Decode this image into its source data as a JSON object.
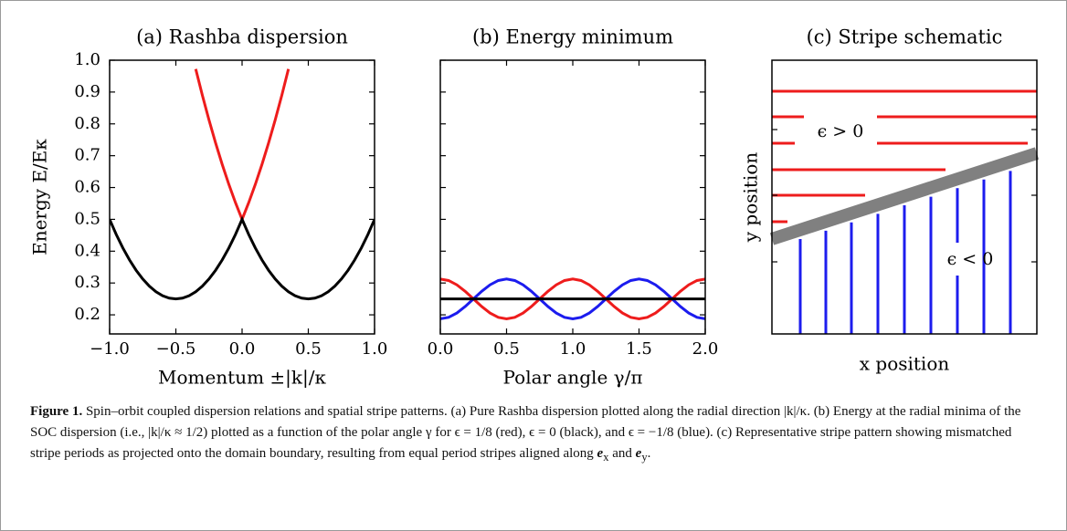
{
  "chart_data": [
    {
      "type": "line",
      "title": "(a) Rashba dispersion",
      "xlabel": "Momentum ±|k|/κ",
      "ylabel": "Energy E/Eκ",
      "x": [
        -1,
        -0.95,
        -0.9,
        -0.85,
        -0.8,
        -0.75,
        -0.7,
        -0.65,
        -0.6,
        -0.55,
        -0.5,
        -0.45,
        -0.4,
        -0.35,
        -0.3,
        -0.25,
        -0.2,
        -0.15,
        -0.1,
        -0.05,
        0,
        0.05,
        0.1,
        0.15,
        0.2,
        0.25,
        0.3,
        0.35,
        0.4,
        0.45,
        0.5,
        0.55,
        0.6,
        0.65,
        0.7,
        0.75,
        0.8,
        0.85,
        0.9,
        0.95,
        1
      ],
      "series": [
        {
          "color": "#ee1c1c",
          "values": [
            null,
            null,
            null,
            null,
            null,
            null,
            null,
            null,
            null,
            null,
            null,
            null,
            null,
            0.9725,
            0.89,
            0.8125,
            0.74,
            0.6725,
            0.61,
            0.5525,
            0.5,
            0.5525,
            0.61,
            0.6725,
            0.74,
            0.8125,
            0.89,
            0.9725,
            null,
            null,
            null,
            null,
            null,
            null,
            null,
            null,
            null,
            null,
            null,
            null,
            null
          ]
        },
        {
          "color": "#000000",
          "values": [
            0.5,
            0.4525,
            0.41,
            0.3725,
            0.34,
            0.3125,
            0.29,
            0.2725,
            0.26,
            0.2525,
            0.25,
            0.2525,
            0.26,
            0.2725,
            0.29,
            0.3125,
            0.34,
            0.3725,
            0.41,
            0.4525,
            0.5,
            0.4525,
            0.41,
            0.3725,
            0.34,
            0.3125,
            0.29,
            0.2725,
            0.26,
            0.2525,
            0.25,
            0.2525,
            0.26,
            0.2725,
            0.29,
            0.3125,
            0.34,
            0.3725,
            0.41,
            0.4525,
            0.5
          ]
        }
      ],
      "xlim": [
        -1,
        1
      ],
      "ylim": [
        0.14,
        1.0
      ],
      "xticks": [
        {
          "value": -1,
          "label": "−1.0"
        },
        {
          "value": -0.5,
          "label": "−0.5"
        },
        {
          "value": 0,
          "label": "0.0"
        },
        0.5,
        {
          "value": 1,
          "label": "1.0"
        }
      ],
      "yticks": [
        0.2,
        0.3,
        0.4,
        0.5,
        0.6,
        0.7,
        0.8,
        0.9,
        {
          "value": 1,
          "label": "1.0"
        }
      ]
    },
    {
      "type": "line",
      "title": "(b) Energy minimum",
      "xlabel": "Polar angle γ/π",
      "x": [
        0,
        0.0625,
        0.125,
        0.1875,
        0.25,
        0.3125,
        0.375,
        0.4375,
        0.5,
        0.5625,
        0.625,
        0.6875,
        0.75,
        0.8125,
        0.875,
        0.9375,
        1,
        1.0625,
        1.125,
        1.1875,
        1.25,
        1.3125,
        1.375,
        1.4375,
        1.5,
        1.5625,
        1.625,
        1.6875,
        1.75,
        1.8125,
        1.875,
        1.9375,
        2
      ],
      "series": [
        {
          "color": "#ee1c1c",
          "values": [
            0.3125,
            0.3078,
            0.2942,
            0.2739,
            0.25,
            0.2261,
            0.2058,
            0.1922,
            0.1875,
            0.1922,
            0.2058,
            0.2261,
            0.25,
            0.2739,
            0.2942,
            0.3078,
            0.3125,
            0.3078,
            0.2942,
            0.2739,
            0.25,
            0.2261,
            0.2058,
            0.1922,
            0.1875,
            0.1922,
            0.2058,
            0.2261,
            0.25,
            0.2739,
            0.2942,
            0.3078,
            0.3125
          ]
        },
        {
          "color": "#1c1cee",
          "values": [
            0.1875,
            0.1922,
            0.2058,
            0.2261,
            0.25,
            0.2739,
            0.2942,
            0.3078,
            0.3125,
            0.3078,
            0.2942,
            0.2739,
            0.25,
            0.2261,
            0.2058,
            0.1922,
            0.1875,
            0.1922,
            0.2058,
            0.2261,
            0.25,
            0.2739,
            0.2942,
            0.3078,
            0.3125,
            0.3078,
            0.2942,
            0.2739,
            0.25,
            0.2261,
            0.2058,
            0.1922,
            0.1875
          ]
        },
        {
          "color": "#000000",
          "values": [
            0.25,
            0.25,
            0.25,
            0.25,
            0.25,
            0.25,
            0.25,
            0.25,
            0.25,
            0.25,
            0.25,
            0.25,
            0.25,
            0.25,
            0.25,
            0.25,
            0.25,
            0.25,
            0.25,
            0.25,
            0.25,
            0.25,
            0.25,
            0.25,
            0.25,
            0.25,
            0.25,
            0.25,
            0.25,
            0.25,
            0.25,
            0.25,
            0.25
          ]
        }
      ],
      "xlim": [
        0,
        2
      ],
      "ylim": [
        0.14,
        1.0
      ],
      "xticks": [
        {
          "value": 0,
          "label": "0.0"
        },
        0.5,
        {
          "value": 1,
          "label": "1.0"
        },
        1.5,
        {
          "value": 2,
          "label": "2.0"
        }
      ],
      "yticks": [
        0.2,
        0.3,
        0.4,
        0.5,
        0.6,
        0.7,
        0.8,
        0.9,
        1
      ],
      "ytick_labels": false
    },
    {
      "type": "schematic",
      "title": "(c) Stripe schematic",
      "xlabel": "x position",
      "ylabel": "y position",
      "annotations": [
        "ϵ > 0",
        "ϵ < 0"
      ]
    }
  ],
  "caption": {
    "label": "Figure 1.",
    "parts": [
      "Spin–orbit coupled dispersion relations and spatial stripe patterns. (a) Pure Rashba dispersion plotted along the radial direction |k|/κ. (b) Energy at the radial minima of the SOC dispersion (i.e., |k|/κ ≈ 1/2) plotted as a function of the polar angle γ for ϵ = 1/8 (red), ϵ = 0 (black), and ϵ = −1/8 (blue). (c) Representative stripe pattern showing mismatched stripe periods as projected onto the domain boundary, resulting from equal period stripes aligned along ",
      "e",
      "x",
      " and ",
      "e",
      "y",
      "."
    ]
  }
}
